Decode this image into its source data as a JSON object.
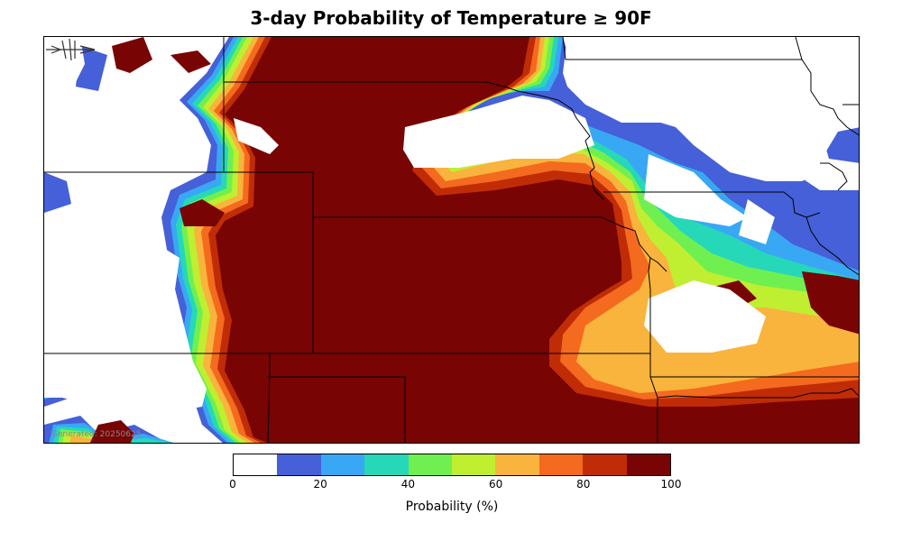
{
  "title": "3-day Probability of Temperature ≥ 90F",
  "generated_text": "Generated: 20250625",
  "colorbar": {
    "label": "Probability (%)",
    "ticks": [
      "0",
      "20",
      "40",
      "60",
      "80",
      "100"
    ],
    "colors": [
      "#ffffff",
      "#4560d8",
      "#38a8f4",
      "#26d8b8",
      "#70f050",
      "#c0ee30",
      "#f8b43c",
      "#f46a1e",
      "#c02c06",
      "#780404"
    ]
  },
  "colors": {
    "max": "#780404",
    "high": "#c02c06",
    "orange": "#f46a1e",
    "yellow": "#f8b43c",
    "lime": "#c0ee30",
    "green": "#70f050",
    "teal": "#26d8b8",
    "sky": "#38a8f4",
    "blue": "#4560d8"
  }
}
